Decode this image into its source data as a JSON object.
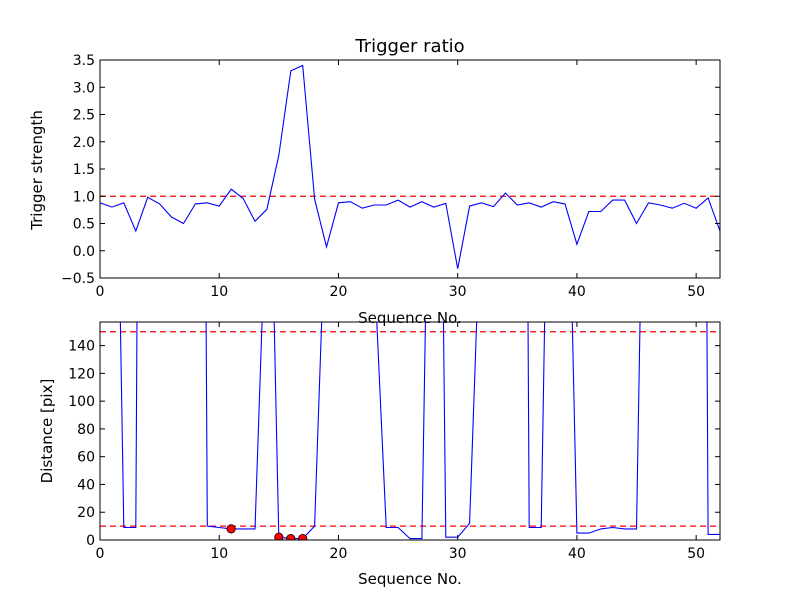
{
  "chart_data": [
    {
      "type": "line",
      "title": "Trigger ratio",
      "xlabel": "Sequence No.",
      "ylabel": "Trigger strength",
      "xlim": [
        0,
        52
      ],
      "ylim": [
        -0.5,
        3.5
      ],
      "xticks": [
        "0",
        "10",
        "20",
        "30",
        "40",
        "50"
      ],
      "yticks": [
        "−0.5",
        "0.0",
        "0.5",
        "1.0",
        "1.5",
        "2.0",
        "2.5",
        "3.0",
        "3.5"
      ],
      "grid": false,
      "series": [
        {
          "color": "#0000ff",
          "x": [
            0,
            1,
            2,
            3,
            4,
            5,
            6,
            7,
            8,
            9,
            10,
            11,
            12,
            13,
            14,
            15,
            16,
            17,
            18,
            19,
            20,
            21,
            22,
            23,
            24,
            25,
            26,
            27,
            28,
            29,
            30,
            31,
            32,
            33,
            34,
            35,
            36,
            37,
            38,
            39,
            40,
            41,
            42,
            43,
            44,
            45,
            46,
            47,
            48,
            49,
            50,
            51,
            52
          ],
          "y": [
            0.88,
            0.8,
            0.88,
            0.36,
            0.98,
            0.86,
            0.62,
            0.5,
            0.86,
            0.88,
            0.82,
            1.13,
            0.96,
            0.54,
            0.76,
            1.75,
            3.3,
            3.4,
            0.95,
            0.07,
            0.88,
            0.9,
            0.78,
            0.84,
            0.84,
            0.93,
            0.8,
            0.9,
            0.8,
            0.87,
            -0.33,
            0.82,
            0.88,
            0.81,
            1.06,
            0.84,
            0.88,
            0.8,
            0.9,
            0.86,
            0.12,
            0.72,
            0.72,
            0.93,
            0.93,
            0.5,
            0.88,
            0.84,
            0.78,
            0.87,
            0.78,
            0.97,
            0.36
          ]
        }
      ],
      "reference_lines": [
        {
          "y": 1.0,
          "color": "#ff0000",
          "style": "dashed"
        }
      ]
    },
    {
      "type": "line",
      "xlabel": "Sequence No.",
      "ylabel": "Distance [pix]",
      "xlim": [
        0,
        52
      ],
      "ylim": [
        0,
        157
      ],
      "xticks": [
        "0",
        "10",
        "20",
        "30",
        "40",
        "50"
      ],
      "yticks": [
        "0",
        "20",
        "40",
        "60",
        "80",
        "100",
        "120",
        "140"
      ],
      "grid": false,
      "series": [
        {
          "color": "#0000ff",
          "x": [
            1.7,
            2,
            3,
            3.1,
            8.9,
            9,
            10,
            11,
            12,
            13,
            13.6,
            14,
            14.6,
            15,
            16,
            17,
            18,
            18.6,
            23.2,
            24,
            25,
            26,
            27,
            27.3,
            28.8,
            29,
            30,
            31,
            31.6,
            35.9,
            36,
            37,
            37.3,
            39.6,
            40,
            41,
            42,
            43,
            44,
            45,
            45.3,
            50.9,
            51,
            52
          ],
          "y": [
            160,
            9,
            9,
            160,
            160,
            10,
            9,
            8,
            8,
            8,
            160,
            160,
            160,
            2,
            1,
            1,
            10,
            160,
            160,
            9,
            9,
            1,
            1,
            160,
            160,
            2,
            2,
            12,
            160,
            160,
            9,
            9,
            160,
            160,
            5,
            5,
            8,
            9,
            8,
            8,
            160,
            160,
            4,
            4
          ]
        },
        {
          "color": "#ff0000",
          "marker": "circle",
          "line": false,
          "x": [
            11,
            15,
            16,
            17
          ],
          "y": [
            8,
            2,
            1,
            1
          ]
        }
      ],
      "reference_lines": [
        {
          "y": 150,
          "color": "#ff0000",
          "style": "dashed"
        },
        {
          "y": 10,
          "color": "#ff0000",
          "style": "dashed"
        }
      ]
    }
  ]
}
